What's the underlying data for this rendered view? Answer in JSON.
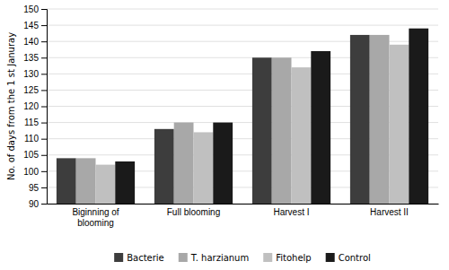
{
  "chart_data": {
    "type": "bar",
    "categories": [
      "Biginning of\nblooming",
      "Full blooming",
      "Harvest I",
      "Harvest II"
    ],
    "series": [
      {
        "name": "Bacterie",
        "color": "#3d3d3d",
        "values": [
          104,
          113,
          135,
          142
        ]
      },
      {
        "name": "T. harzianum",
        "color": "#a8a8a8",
        "values": [
          104,
          115,
          135,
          142
        ]
      },
      {
        "name": "Fitohelp",
        "color": "#c0c0c0",
        "values": [
          102,
          112,
          132,
          139
        ]
      },
      {
        "name": "Control",
        "color": "#1a1a1a",
        "values": [
          103,
          115,
          137,
          144
        ]
      }
    ],
    "ylabel": "No. of days from the 1 st Januray",
    "ylim": [
      90,
      150
    ],
    "yticks": [
      90,
      95,
      100,
      105,
      110,
      115,
      120,
      125,
      130,
      135,
      140,
      145,
      150
    ],
    "grid": true,
    "legend": "bottom"
  }
}
